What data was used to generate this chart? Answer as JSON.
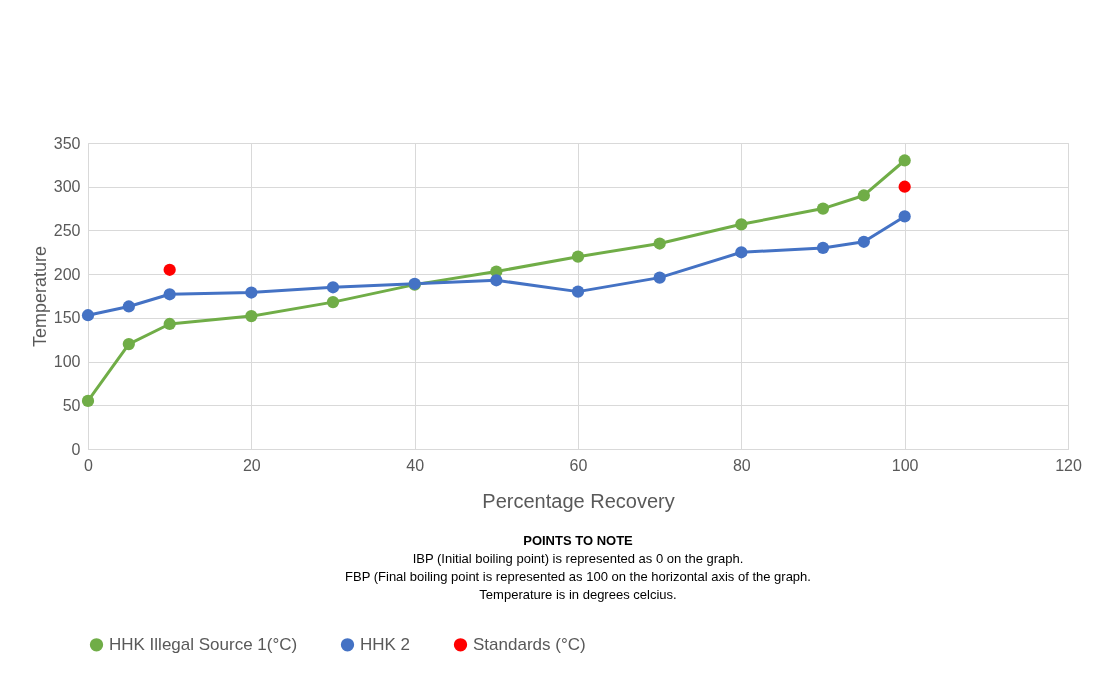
{
  "chart_data": {
    "type": "line",
    "xlabel": "Percentage Recovery",
    "ylabel": "Temperature",
    "x": [
      0,
      5,
      10,
      20,
      30,
      40,
      50,
      60,
      70,
      80,
      90,
      95,
      100
    ],
    "series": [
      {
        "name": "HHK Illegal Source 1(°C)",
        "color": "#70ad47",
        "values": [
          55,
          120,
          143,
          152,
          168,
          188,
          203,
          220,
          235,
          257,
          275,
          290,
          330
        ]
      },
      {
        "name": "HHK 2",
        "color": "#4472c4",
        "values": [
          153,
          163,
          177,
          179,
          185,
          189,
          193,
          180,
          196,
          225,
          230,
          237,
          266
        ]
      },
      {
        "name": "Standards (°C)",
        "type": "scatter",
        "color": "#ff0000",
        "x": [
          10,
          100
        ],
        "values": [
          205,
          300
        ]
      }
    ],
    "xlim": [
      0,
      120
    ],
    "xticks": [
      0,
      20,
      40,
      60,
      80,
      100,
      120
    ],
    "ylim": [
      0,
      350
    ],
    "yticks": [
      0,
      50,
      100,
      150,
      200,
      250,
      300,
      350
    ],
    "grid": true,
    "legend": "bottom",
    "marker": "circle",
    "annotations": [
      "POINTS TO NOTE",
      "IBP (Initial boiling point) is represented as 0 on the graph.",
      "FBP (Final boiling point is represented as 100 on the horizontal axis of the graph.",
      "Temperature is in degrees celcius."
    ]
  }
}
